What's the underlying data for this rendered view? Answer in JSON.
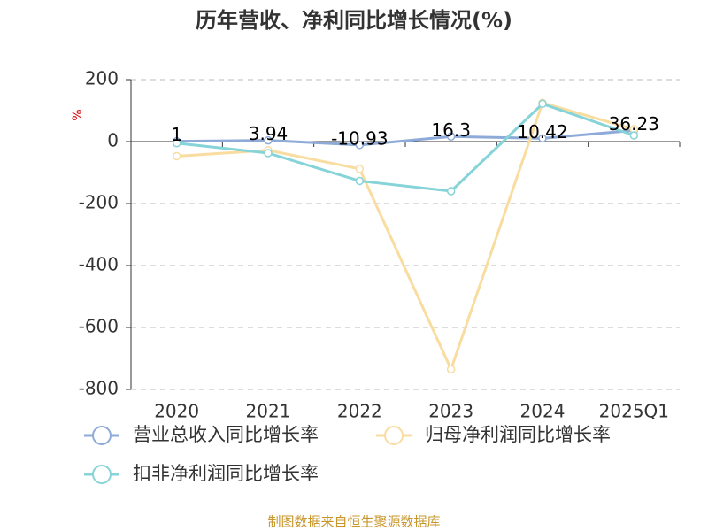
{
  "chart_data": {
    "type": "line",
    "title": "历年营收、净利同比增长情况(%)",
    "y_label": "%",
    "categories": [
      "2020",
      "2021",
      "2022",
      "2023",
      "2024",
      "2025Q1"
    ],
    "series": [
      {
        "name": "营业总收入同比增长率",
        "color": "#8eaad8",
        "values": [
          1,
          3.94,
          -10.93,
          16.3,
          10.42,
          36.23
        ],
        "show_labels": true
      },
      {
        "name": "归母净利润同比增长率",
        "color": "#f9dca0",
        "values": [
          -47,
          -28,
          -88,
          -735,
          125,
          40
        ]
      },
      {
        "name": "扣非净利润同比增长率",
        "color": "#86d3d8",
        "values": [
          -5,
          -37,
          -127,
          -160,
          122,
          20
        ]
      }
    ],
    "ylim": [
      -800,
      200
    ],
    "yticks": [
      -800,
      -600,
      -400,
      -200,
      0,
      200
    ],
    "grid": true,
    "source": "制图数据来自恒生聚源数据库"
  }
}
